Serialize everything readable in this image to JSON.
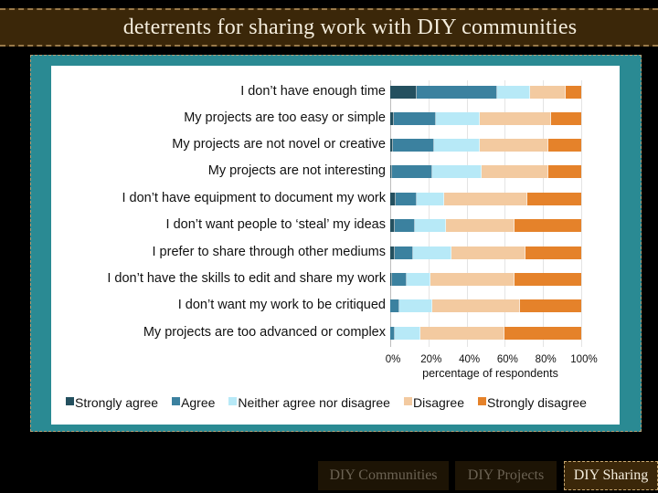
{
  "slide": {
    "title": "deterrents for sharing work with DIY communities"
  },
  "nav": {
    "tabs": [
      {
        "label": "DIY Communities",
        "active": false
      },
      {
        "label": "DIY Projects",
        "active": false
      },
      {
        "label": "DIY Sharing",
        "active": true
      }
    ]
  },
  "colors": {
    "strongly_agree": "#24505f",
    "agree": "#3b819f",
    "neither": "#b7e9f7",
    "disagree": "#f3caa0",
    "strongly_disagree": "#e5822a",
    "title_bg": "#3b2709",
    "panel": "#2a8a93"
  },
  "chart_data": {
    "type": "bar",
    "orientation": "horizontal",
    "stacked": "100%",
    "title": "",
    "xlabel": "percentage of respondents",
    "ylabel": "",
    "xlim": [
      0,
      100
    ],
    "x_ticks": [
      "0%",
      "20%",
      "40%",
      "60%",
      "80%",
      "100%"
    ],
    "grid": true,
    "legend_position": "bottom",
    "categories": [
      "I don’t have enough time",
      "My projects are too easy or simple",
      "My projects are not novel or creative",
      "My projects are not interesting",
      "I don’t have equipment to document my work",
      "I don’t want people to ‘steal’ my ideas",
      "I prefer to share through other mediums",
      "I don’t have the skills to edit and share my work",
      "I don’t want my work to be critiqued",
      "My projects are too advanced or complex"
    ],
    "series": [
      {
        "name": "Strongly agree",
        "values": [
          14,
          2,
          1.5,
          1,
          3,
          2.5,
          2.5,
          1,
          0,
          0
        ]
      },
      {
        "name": "Agree",
        "values": [
          42,
          22,
          21.5,
          21,
          11,
          10.5,
          9.5,
          7.5,
          5,
          2.5
        ]
      },
      {
        "name": "Neither agree nor disagree",
        "values": [
          17,
          23,
          24,
          26,
          14,
          16,
          20,
          12.5,
          17,
          13.5
        ]
      },
      {
        "name": "Disagree",
        "values": [
          19,
          37,
          36,
          35,
          44,
          36,
          39,
          44,
          46,
          44
        ]
      },
      {
        "name": "Strongly disagree",
        "values": [
          8,
          16,
          17,
          17,
          28,
          35,
          29,
          35,
          32,
          40
        ]
      }
    ]
  }
}
